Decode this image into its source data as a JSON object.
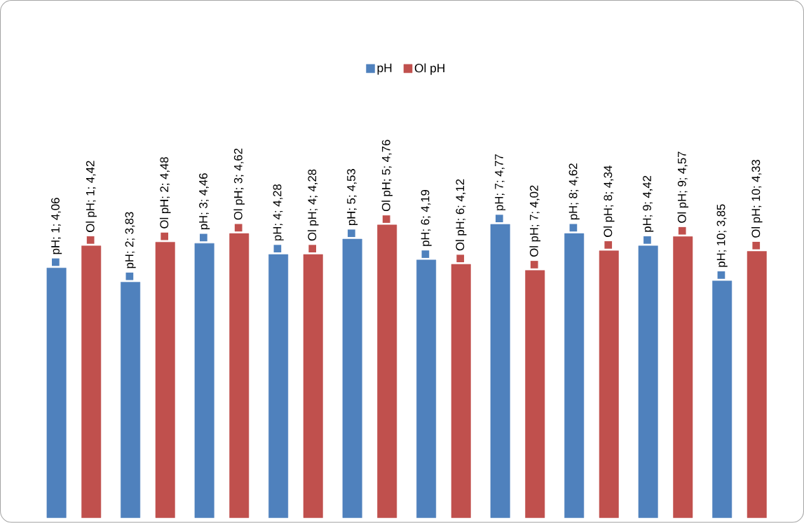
{
  "chart_data": {
    "type": "bar",
    "categories": [
      null,
      null,
      null,
      null,
      null,
      null,
      null,
      null,
      null,
      null
    ],
    "series": [
      {
        "name": "pH",
        "color": "#4f81bd",
        "values": [
          4.06,
          3.83,
          4.46,
          4.28,
          4.53,
          4.19,
          4.77,
          4.62,
          4.42,
          3.85
        ],
        "value_labels": [
          "pH; 1;  4,06",
          "pH; 2;  3,83",
          "pH; 3;  4,46",
          "pH; 4;  4,28",
          "pH; 5;  4,53",
          "pH; 6;  4,19",
          "pH; 7;  4,77",
          "pH; 8;  4,62",
          "pH; 9;  4,42",
          "pH; 10;  3,85"
        ]
      },
      {
        "name": "Ol pH",
        "color": "#c0504d",
        "values": [
          4.42,
          4.48,
          4.62,
          4.28,
          4.76,
          4.12,
          4.02,
          4.34,
          4.57,
          4.33
        ],
        "value_labels": [
          "Ol pH; 1;  4,42",
          "Ol pH; 2;  4,48",
          "Ol pH; 3;  4,62",
          "Ol pH; 4;  4,28",
          "Ol pH; 5;  4,76",
          "Ol pH; 6;  4,12",
          "Ol pH; 7;  4,02",
          "Ol pH; 8;  4,34",
          "Ol pH; 9;  4,57",
          "Ol pH; 10;  4,33"
        ]
      }
    ],
    "legend": "top"
  }
}
